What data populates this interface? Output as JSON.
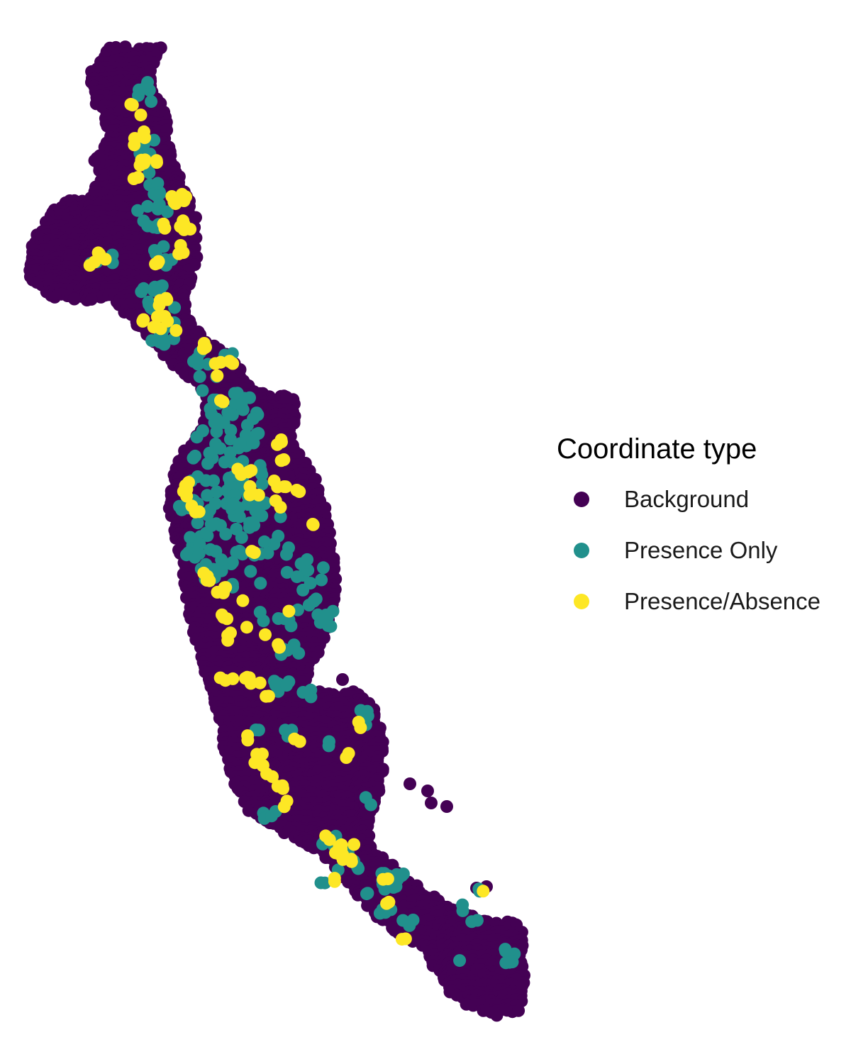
{
  "legend": {
    "title": "Coordinate type",
    "items": [
      {
        "label": "Background",
        "color": "#440154"
      },
      {
        "label": "Presence Only",
        "color": "#21908C"
      },
      {
        "label": "Presence/Absence",
        "color": "#FDE725"
      }
    ]
  },
  "map": {
    "type": "point-map",
    "axes_shown": false,
    "grid": false,
    "legend_placement": "right",
    "series_order": [
      "Background",
      "Presence Only",
      "Presence/Absence"
    ]
  }
}
